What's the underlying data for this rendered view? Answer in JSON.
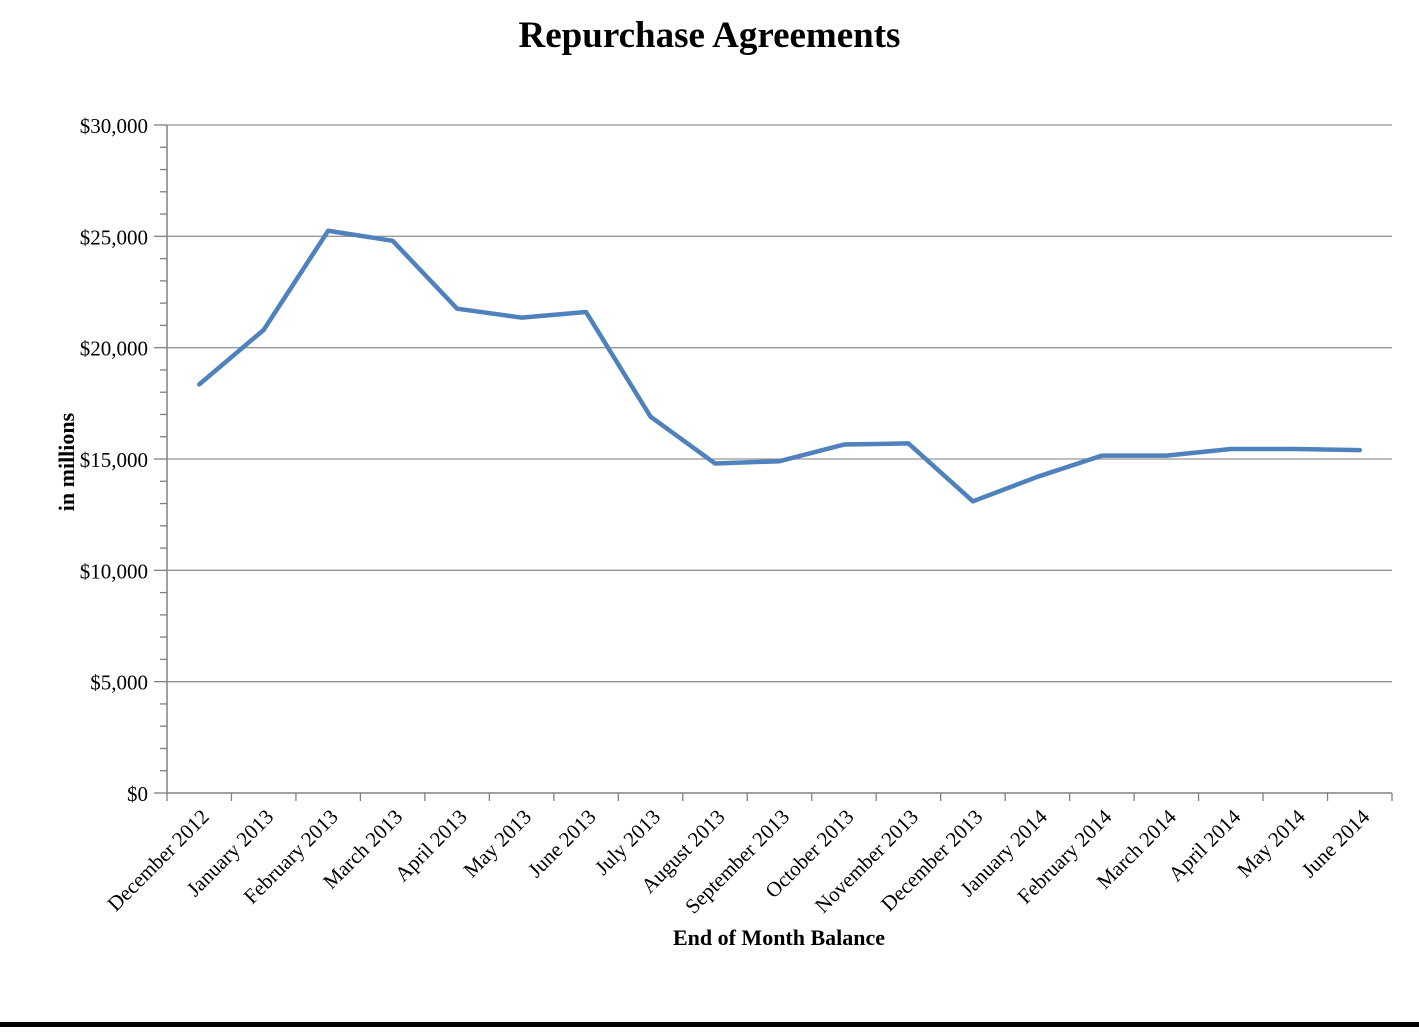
{
  "page": {
    "background": "#ffffff"
  },
  "chart_data": {
    "type": "line",
    "title": "Repurchase Agreements",
    "xlabel": "End of Month Balance",
    "ylabel": "in millions",
    "categories": [
      "December 2012",
      "January 2013",
      "February 2013",
      "March 2013",
      "April 2013",
      "May 2013",
      "June 2013",
      "July 2013",
      "August 2013",
      "September 2013",
      "October 2013",
      "November 2013",
      "December 2013",
      "January 2014",
      "February 2014",
      "March 2014",
      "April 2014",
      "May 2014",
      "June 2014"
    ],
    "values": [
      18350,
      20800,
      25250,
      24800,
      21750,
      21350,
      21600,
      16900,
      14800,
      14900,
      15650,
      15700,
      13100,
      14200,
      15150,
      15150,
      15450,
      15450,
      15400
    ],
    "ylim": [
      0,
      30000
    ],
    "ytick_step": 5000,
    "yminor_step": 1000,
    "ytick_labels": [
      "$0",
      "$5,000",
      "$10,000",
      "$15,000",
      "$20,000",
      "$25,000",
      "$30,000"
    ],
    "grid": true,
    "legend": false,
    "x_label_rotation": -45,
    "colors": {
      "line": "#4F81BD",
      "gridline": "#969696",
      "axis": "#808080",
      "text": "#000000",
      "bottom_bar": "#000000"
    }
  }
}
